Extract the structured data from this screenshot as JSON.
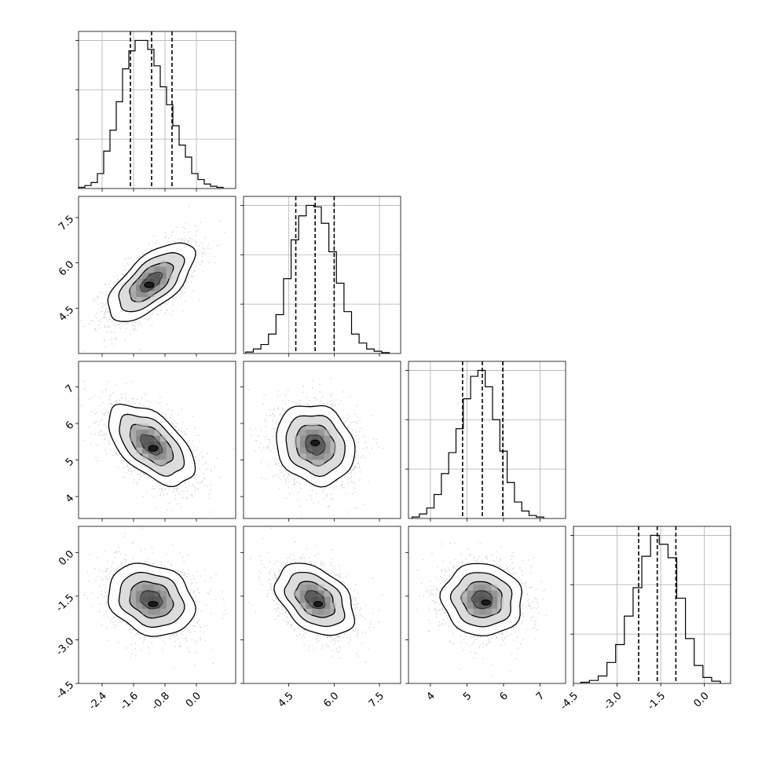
{
  "chart_data": {
    "type": "corner",
    "title": "",
    "grid": true,
    "parameters": [
      {
        "range": [
          -3.0,
          1.0
        ],
        "ticks": [
          "-2.4",
          "-1.6",
          "-0.8",
          "0.0"
        ],
        "tick_values": [
          -2.4,
          -1.6,
          -0.8,
          0.0
        ],
        "quantiles": [
          -1.68,
          -1.14,
          -0.62
        ],
        "hist": [
          {
            "x": -2.92,
            "y": 0.008
          },
          {
            "x": -2.76,
            "y": 0.02
          },
          {
            "x": -2.6,
            "y": 0.04
          },
          {
            "x": -2.44,
            "y": 0.1
          },
          {
            "x": -2.28,
            "y": 0.25
          },
          {
            "x": -2.12,
            "y": 0.39
          },
          {
            "x": -1.96,
            "y": 0.58
          },
          {
            "x": -1.8,
            "y": 0.8
          },
          {
            "x": -1.64,
            "y": 0.92
          },
          {
            "x": -1.48,
            "y": 0.99
          },
          {
            "x": -1.32,
            "y": 0.99
          },
          {
            "x": -1.16,
            "y": 0.93
          },
          {
            "x": -1.0,
            "y": 0.82
          },
          {
            "x": -0.84,
            "y": 0.68
          },
          {
            "x": -0.68,
            "y": 0.56
          },
          {
            "x": -0.52,
            "y": 0.42
          },
          {
            "x": -0.36,
            "y": 0.29
          },
          {
            "x": -0.2,
            "y": 0.21
          },
          {
            "x": -0.04,
            "y": 0.1
          },
          {
            "x": 0.12,
            "y": 0.06
          },
          {
            "x": 0.28,
            "y": 0.03
          },
          {
            "x": 0.44,
            "y": 0.015
          },
          {
            "x": 0.6,
            "y": 0.008
          }
        ]
      },
      {
        "range": [
          3.0,
          8.2
        ],
        "ticks": [
          "4.5",
          "6.0",
          "7.5"
        ],
        "tick_values": [
          4.5,
          6.0,
          7.5
        ],
        "quantiles": [
          4.73,
          5.37,
          6.0
        ],
        "hist": [
          {
            "x": 3.2,
            "y": 0.01
          },
          {
            "x": 3.45,
            "y": 0.03
          },
          {
            "x": 3.7,
            "y": 0.06
          },
          {
            "x": 3.95,
            "y": 0.13
          },
          {
            "x": 4.2,
            "y": 0.26
          },
          {
            "x": 4.45,
            "y": 0.5
          },
          {
            "x": 4.7,
            "y": 0.76
          },
          {
            "x": 4.95,
            "y": 0.92
          },
          {
            "x": 5.2,
            "y": 0.99
          },
          {
            "x": 5.45,
            "y": 0.98
          },
          {
            "x": 5.7,
            "y": 0.87
          },
          {
            "x": 5.95,
            "y": 0.68
          },
          {
            "x": 6.2,
            "y": 0.47
          },
          {
            "x": 6.45,
            "y": 0.28
          },
          {
            "x": 6.7,
            "y": 0.13
          },
          {
            "x": 6.95,
            "y": 0.07
          },
          {
            "x": 7.2,
            "y": 0.03
          },
          {
            "x": 7.45,
            "y": 0.015
          },
          {
            "x": 7.7,
            "y": 0.006
          }
        ]
      },
      {
        "range": [
          3.4,
          7.7
        ],
        "ticks": [
          "4",
          "5",
          "6",
          "7"
        ],
        "tick_values": [
          4,
          5,
          6,
          7
        ],
        "quantiles": [
          4.88,
          5.42,
          5.98
        ],
        "hist": [
          {
            "x": 3.6,
            "y": 0.01
          },
          {
            "x": 3.8,
            "y": 0.03
          },
          {
            "x": 4.0,
            "y": 0.07
          },
          {
            "x": 4.2,
            "y": 0.16
          },
          {
            "x": 4.4,
            "y": 0.3
          },
          {
            "x": 4.6,
            "y": 0.44
          },
          {
            "x": 4.8,
            "y": 0.6
          },
          {
            "x": 5.0,
            "y": 0.8
          },
          {
            "x": 5.2,
            "y": 0.95
          },
          {
            "x": 5.4,
            "y": 0.99
          },
          {
            "x": 5.6,
            "y": 0.88
          },
          {
            "x": 5.8,
            "y": 0.66
          },
          {
            "x": 6.0,
            "y": 0.45
          },
          {
            "x": 6.2,
            "y": 0.24
          },
          {
            "x": 6.4,
            "y": 0.11
          },
          {
            "x": 6.6,
            "y": 0.05
          },
          {
            "x": 6.8,
            "y": 0.02
          },
          {
            "x": 7.0,
            "y": 0.01
          }
        ]
      },
      {
        "range": [
          -4.5,
          0.9
        ],
        "ticks": [
          "-4.5",
          "-3.0",
          "-1.5",
          "0.0"
        ],
        "tick_values": [
          -4.5,
          -3.0,
          -1.5,
          0.0
        ],
        "quantiles": [
          -2.26,
          -1.62,
          -0.98
        ],
        "hist": [
          {
            "x": -4.1,
            "y": 0.008
          },
          {
            "x": -3.8,
            "y": 0.02
          },
          {
            "x": -3.5,
            "y": 0.05
          },
          {
            "x": -3.2,
            "y": 0.14
          },
          {
            "x": -2.9,
            "y": 0.26
          },
          {
            "x": -2.6,
            "y": 0.45
          },
          {
            "x": -2.3,
            "y": 0.64
          },
          {
            "x": -2.0,
            "y": 0.85
          },
          {
            "x": -1.7,
            "y": 0.99
          },
          {
            "x": -1.4,
            "y": 0.93
          },
          {
            "x": -1.1,
            "y": 0.84
          },
          {
            "x": -0.8,
            "y": 0.57
          },
          {
            "x": -0.5,
            "y": 0.3
          },
          {
            "x": -0.2,
            "y": 0.12
          },
          {
            "x": 0.1,
            "y": 0.04
          },
          {
            "x": 0.4,
            "y": 0.015
          }
        ]
      }
    ],
    "pairs": [
      {
        "row": 1,
        "col": 0,
        "center": [
          -1.15,
          5.37
        ],
        "sigma": [
          0.55,
          0.65
        ],
        "rho": 0.65,
        "peak_offset": [
          -0.05,
          -0.1
        ]
      },
      {
        "row": 2,
        "col": 0,
        "center": [
          -1.15,
          5.42
        ],
        "sigma": [
          0.55,
          0.55
        ],
        "rho": -0.55,
        "peak_offset": [
          0.05,
          -0.1
        ]
      },
      {
        "row": 2,
        "col": 1,
        "center": [
          5.37,
          5.42
        ],
        "sigma": [
          0.65,
          0.55
        ],
        "rho": -0.15,
        "peak_offset": [
          0.0,
          0.05
        ]
      },
      {
        "row": 3,
        "col": 0,
        "center": [
          -1.15,
          -1.62
        ],
        "sigma": [
          0.55,
          0.62
        ],
        "rho": -0.2,
        "peak_offset": [
          0.05,
          -0.15
        ]
      },
      {
        "row": 3,
        "col": 1,
        "center": [
          5.37,
          -1.62
        ],
        "sigma": [
          0.65,
          0.62
        ],
        "rho": -0.4,
        "peak_offset": [
          0.1,
          -0.15
        ]
      },
      {
        "row": 3,
        "col": 2,
        "center": [
          5.42,
          -1.62
        ],
        "sigma": [
          0.55,
          0.62
        ],
        "rho": -0.05,
        "peak_offset": [
          0.1,
          -0.1
        ]
      }
    ]
  }
}
